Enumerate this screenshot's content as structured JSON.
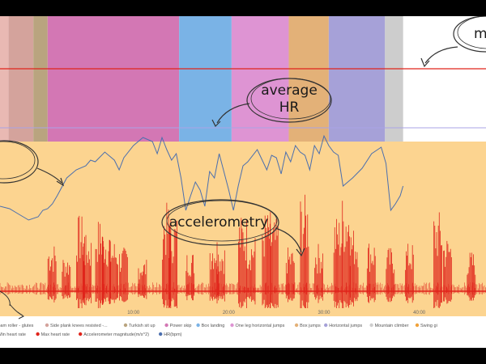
{
  "chart_data": {
    "type": "line",
    "xlabel": "",
    "ylabel": "",
    "x_ticks": [
      "10:00",
      "20:00",
      "30:00",
      "40:00"
    ],
    "x_tick_values": [
      10,
      20,
      30,
      40
    ],
    "xlim": [
      -4,
      47
    ],
    "activity_segments": [
      {
        "name": "Foam roller - glutes",
        "start": -4.0,
        "end": -3.1,
        "color": "#e9b9b3"
      },
      {
        "name": "Side plank knees resisted",
        "start": -3.1,
        "end": -0.5,
        "color": "#d4a39c"
      },
      {
        "name": "Turkish sit up",
        "start": -0.5,
        "end": 1.0,
        "color": "#b9a47f"
      },
      {
        "name": "Power skip",
        "start": 1.0,
        "end": 14.8,
        "color": "#d377b4"
      },
      {
        "name": "Box landing",
        "start": 14.8,
        "end": 20.3,
        "color": "#7ab3e6"
      },
      {
        "name": "One leg horizontal jumps",
        "start": 20.3,
        "end": 26.3,
        "color": "#de94d3"
      },
      {
        "name": "Box jumps",
        "start": 26.3,
        "end": 30.5,
        "color": "#e3b178"
      },
      {
        "name": "Horizontal jumps",
        "start": 30.5,
        "end": 36.4,
        "color": "#a6a1d8"
      },
      {
        "name": "Mountain climber",
        "start": 36.4,
        "end": 38.3,
        "color": "#cdcdcd"
      }
    ],
    "legend_row1": [
      "Foam roller - glutes",
      "Side plank knees resisted -...",
      "Turkish sit up",
      "Power skip",
      "Box landing",
      "One leg horizontal jumps",
      "Box jumps",
      "Horizontal jumps",
      "Mountain climber",
      "Swing gi"
    ],
    "legend_row1_colors": [
      "#e9b9b3",
      "#d4a39c",
      "#b9a47f",
      "#d377b4",
      "#7ab3e6",
      "#de94d3",
      "#e3b178",
      "#a6a1d8",
      "#cdcdcd",
      "#f0a23a"
    ],
    "legend_row2": [
      "Min heart rate",
      "Max heart rate",
      "Accelerometer magnitude(m/s^2)",
      "HR(bpm)"
    ],
    "legend_row2_colors": [
      "#3e86d4",
      "#e0241b",
      "#e0241b",
      "#4b6fae"
    ],
    "max_hr_line": {
      "color": "#e0241b"
    },
    "avg_hr_line": {
      "color": "#a9a3e6"
    },
    "hr_series": {
      "name": "HR(bpm)",
      "color": "#4b6fae",
      "x": [
        -4,
        -3,
        -2,
        -1,
        0,
        0.5,
        1,
        1.5,
        2,
        3,
        4,
        5,
        5.5,
        6,
        7,
        8,
        8.5,
        9,
        10,
        11,
        12,
        12.5,
        13,
        13.5,
        14,
        14.5,
        15,
        15.5,
        16,
        16.5,
        17,
        17.5,
        18,
        18.5,
        19,
        20,
        20.5,
        21,
        21.5,
        22,
        23,
        24,
        24.5,
        25,
        25.5,
        26,
        26.5,
        27,
        27.5,
        28,
        28.5,
        29,
        29.5,
        30,
        30.5,
        31,
        31.5,
        32,
        33,
        34,
        35,
        36,
        36.5,
        37,
        37.5,
        38,
        38.3
      ],
      "y": [
        235,
        238,
        245,
        252,
        248,
        240,
        238,
        232,
        222,
        200,
        190,
        185,
        178,
        180,
        168,
        178,
        190,
        175,
        160,
        150,
        155,
        170,
        150,
        165,
        178,
        170,
        200,
        240,
        222,
        205,
        215,
        235,
        192,
        200,
        170,
        215,
        240,
        210,
        185,
        180,
        165,
        190,
        172,
        175,
        195,
        168,
        180,
        160,
        168,
        172,
        190,
        160,
        170,
        148,
        160,
        168,
        172,
        210,
        200,
        188,
        170,
        162,
        182,
        240,
        232,
        222,
        210
      ],
      "ylim": [
        120,
        260
      ]
    },
    "accel_series": {
      "name": "Accelerometer magnitude(m/s^2)",
      "color": "#e0241b",
      "baseline": 340,
      "bursts": [
        {
          "x": 1.5,
          "h": 60
        },
        {
          "x": 3.0,
          "h": 45
        },
        {
          "x": 4.5,
          "h": 95
        },
        {
          "x": 5.2,
          "h": 70
        },
        {
          "x": 6.5,
          "h": 90
        },
        {
          "x": 7.2,
          "h": 80
        },
        {
          "x": 8.0,
          "h": 65
        },
        {
          "x": 9.0,
          "h": 55
        },
        {
          "x": 11.0,
          "h": 40
        },
        {
          "x": 13.5,
          "h": 110
        },
        {
          "x": 14.2,
          "h": 95
        },
        {
          "x": 16.0,
          "h": 50
        },
        {
          "x": 18.5,
          "h": 70
        },
        {
          "x": 19.2,
          "h": 60
        },
        {
          "x": 21.5,
          "h": 95
        },
        {
          "x": 22.4,
          "h": 70
        },
        {
          "x": 24.0,
          "h": 100
        },
        {
          "x": 24.8,
          "h": 90
        },
        {
          "x": 26.5,
          "h": 55
        },
        {
          "x": 28.0,
          "h": 120
        },
        {
          "x": 29.5,
          "h": 60
        },
        {
          "x": 31.5,
          "h": 95
        },
        {
          "x": 32.4,
          "h": 120
        },
        {
          "x": 33.2,
          "h": 80
        },
        {
          "x": 35.0,
          "h": 65
        },
        {
          "x": 37.0,
          "h": 55
        },
        {
          "x": 39.0,
          "h": 60
        },
        {
          "x": 42.0,
          "h": 100
        },
        {
          "x": 43.0,
          "h": 70
        },
        {
          "x": 45.5,
          "h": 50
        }
      ]
    },
    "annotations": {
      "avg_hr": {
        "line1": "average",
        "line2": "HR"
      },
      "accel": {
        "text": "accelerometry"
      },
      "max_partial": {
        "text": "m"
      }
    }
  }
}
